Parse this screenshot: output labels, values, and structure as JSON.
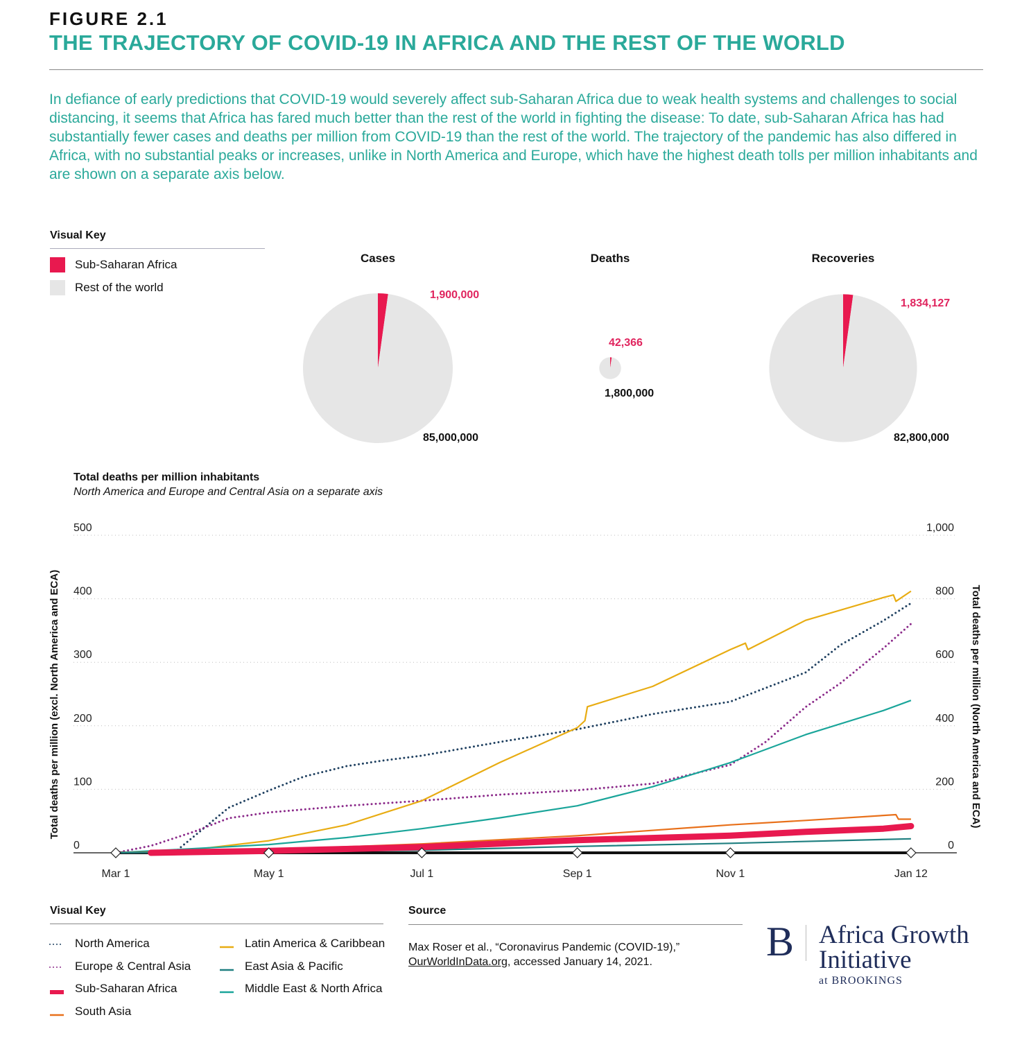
{
  "header": {
    "figure_label": "FIGURE 2.1",
    "title": "THE TRAJECTORY OF COVID-19 IN AFRICA AND THE REST OF THE WORLD",
    "intro": "In defiance of early predictions that COVID-19 would severely affect sub-Saharan Africa due to weak health systems and challenges to social distancing, it seems that Africa has fared much better than the rest of the world in fighting the disease: To date, sub-Saharan Africa has had substantially fewer cases and deaths per million from COVID-19 than the rest of the world. The trajectory of the pandemic has also differed in Africa, with no substantial peaks or increases, unlike in North America and Europe, which have the highest death tolls per million inhabitants and are shown on a separate axis below."
  },
  "pie_key": {
    "title": "Visual Key",
    "items": [
      {
        "label": "Sub-Saharan Africa",
        "color": "#e8194f"
      },
      {
        "label": "Rest of the world",
        "color": "#e6e6e6"
      }
    ]
  },
  "chart_data": [
    {
      "type": "pie",
      "title": "Cases",
      "slices": [
        {
          "label": "Sub-Saharan Africa",
          "value": 1900000,
          "display": "1,900,000",
          "color": "#e8194f"
        },
        {
          "label": "Rest of the world",
          "value": 85000000,
          "display": "85,000,000",
          "color": "#e6e6e6"
        }
      ]
    },
    {
      "type": "pie",
      "title": "Deaths",
      "slices": [
        {
          "label": "Sub-Saharan Africa",
          "value": 42366,
          "display": "42,366",
          "color": "#e8194f"
        },
        {
          "label": "Rest of the world",
          "value": 1800000,
          "display": "1,800,000",
          "color": "#e6e6e6"
        }
      ]
    },
    {
      "type": "pie",
      "title": "Recoveries",
      "slices": [
        {
          "label": "Sub-Saharan Africa",
          "value": 1834127,
          "display": "1,834,127",
          "color": "#e8194f"
        },
        {
          "label": "Rest of the world",
          "value": 82800000,
          "display": "82,800,000",
          "color": "#e6e6e6"
        }
      ]
    },
    {
      "type": "line",
      "title": "Total deaths per million inhabitants",
      "subtitle": "North America and Europe and Central Asia on a separate axis",
      "ylabel": "Total deaths per million (excl. North America and ECA)",
      "y2label": "Total deaths per million (North America and ECA)",
      "ylim": [
        0,
        500
      ],
      "y2lim": [
        0,
        1000
      ],
      "yticks": [
        "0",
        "100",
        "200",
        "300",
        "400",
        "500"
      ],
      "y2ticks": [
        "0",
        "200",
        "400",
        "600",
        "800",
        "1,000"
      ],
      "xticks": [
        {
          "label": "Mar 1",
          "date": "2020-03-01"
        },
        {
          "label": "May 1",
          "date": "2020-05-01"
        },
        {
          "label": "Jul 1",
          "date": "2020-07-01"
        },
        {
          "label": "Sep 1",
          "date": "2020-09-01"
        },
        {
          "label": "Nov 1",
          "date": "2020-11-01"
        },
        {
          "label": "Jan 12",
          "date": "2021-01-12"
        }
      ],
      "grid": true,
      "series": [
        {
          "name": "North America",
          "axis": "right",
          "style": "dotted",
          "color": "#1f4060",
          "points": [
            [
              "2020-03-01",
              0
            ],
            [
              "2020-03-25",
              5
            ],
            [
              "2020-04-15",
              142
            ],
            [
              "2020-05-01",
              196
            ],
            [
              "2020-05-15",
              240
            ],
            [
              "2020-06-01",
              273
            ],
            [
              "2020-06-15",
              290
            ],
            [
              "2020-07-01",
              306
            ],
            [
              "2020-08-01",
              349
            ],
            [
              "2020-09-01",
              389
            ],
            [
              "2020-10-01",
              437
            ],
            [
              "2020-11-01",
              476
            ],
            [
              "2020-12-01",
              568
            ],
            [
              "2020-12-15",
              655
            ],
            [
              "2021-01-01",
              731
            ],
            [
              "2021-01-12",
              786
            ]
          ]
        },
        {
          "name": "Europe & Central Asia",
          "axis": "right",
          "style": "dotted",
          "color": "#8b2a8a",
          "points": [
            [
              "2020-03-01",
              0
            ],
            [
              "2020-03-15",
              22
            ],
            [
              "2020-04-01",
              66
            ],
            [
              "2020-04-15",
              109
            ],
            [
              "2020-05-01",
              127
            ],
            [
              "2020-06-01",
              148
            ],
            [
              "2020-07-01",
              164
            ],
            [
              "2020-08-01",
              183
            ],
            [
              "2020-09-01",
              197
            ],
            [
              "2020-10-01",
              218
            ],
            [
              "2020-11-01",
              277
            ],
            [
              "2020-11-15",
              349
            ],
            [
              "2020-12-01",
              459
            ],
            [
              "2020-12-15",
              535
            ],
            [
              "2021-01-01",
              644
            ],
            [
              "2021-01-12",
              721
            ]
          ]
        },
        {
          "name": "Latin America & Caribbean",
          "axis": "left",
          "style": "solid",
          "color": "#e8ac12",
          "points": [
            [
              "2020-03-01",
              0
            ],
            [
              "2020-04-01",
              5
            ],
            [
              "2020-05-01",
              19
            ],
            [
              "2020-06-01",
              44
            ],
            [
              "2020-07-01",
              82
            ],
            [
              "2020-08-01",
              142
            ],
            [
              "2020-09-01",
              197
            ],
            [
              "2020-09-04",
              208
            ],
            [
              "2020-09-05",
              230
            ],
            [
              "2020-10-01",
              262
            ],
            [
              "2020-11-01",
              320
            ],
            [
              "2020-11-07",
              330
            ],
            [
              "2020-11-08",
              320
            ],
            [
              "2020-12-01",
              366
            ],
            [
              "2021-01-01",
              402
            ],
            [
              "2021-01-05",
              406
            ],
            [
              "2021-01-06",
              396
            ],
            [
              "2021-01-12",
              412
            ]
          ]
        },
        {
          "name": "Middle East & North Africa",
          "axis": "left",
          "style": "solid",
          "color": "#1aa59a",
          "points": [
            [
              "2020-03-01",
              0
            ],
            [
              "2020-05-01",
              13
            ],
            [
              "2020-06-01",
              24
            ],
            [
              "2020-07-01",
              38
            ],
            [
              "2020-08-01",
              55
            ],
            [
              "2020-09-01",
              74
            ],
            [
              "2020-10-01",
              104
            ],
            [
              "2020-11-01",
              142
            ],
            [
              "2020-12-01",
              186
            ],
            [
              "2021-01-01",
              224
            ],
            [
              "2021-01-12",
              240
            ]
          ]
        },
        {
          "name": "South Asia",
          "axis": "left",
          "style": "solid",
          "color": "#e8701a",
          "points": [
            [
              "2020-03-01",
              0
            ],
            [
              "2020-05-01",
              5
            ],
            [
              "2020-07-01",
              14
            ],
            [
              "2020-09-01",
              27
            ],
            [
              "2020-11-01",
              44
            ],
            [
              "2020-12-01",
              51
            ],
            [
              "2021-01-06",
              60
            ],
            [
              "2021-01-07",
              53
            ],
            [
              "2021-01-12",
              53
            ]
          ]
        },
        {
          "name": "East Asia & Pacific",
          "axis": "left",
          "style": "solid",
          "color": "#1f7f80",
          "points": [
            [
              "2020-03-01",
              0
            ],
            [
              "2020-07-01",
              4
            ],
            [
              "2020-09-01",
              10
            ],
            [
              "2020-11-01",
              15
            ],
            [
              "2021-01-12",
              22
            ]
          ]
        },
        {
          "name": "Sub-Saharan Africa",
          "axis": "left",
          "style": "thick",
          "color": "#e8194f",
          "points": [
            [
              "2020-03-15",
              0
            ],
            [
              "2020-05-01",
              3
            ],
            [
              "2020-07-01",
              9
            ],
            [
              "2020-09-01",
              20
            ],
            [
              "2020-11-01",
              27
            ],
            [
              "2020-12-01",
              33
            ],
            [
              "2021-01-01",
              38
            ],
            [
              "2021-01-12",
              42
            ]
          ]
        }
      ]
    }
  ],
  "legend": {
    "title": "Visual Key",
    "items": [
      {
        "label": "North America",
        "color": "#1f4060",
        "style": "dotted"
      },
      {
        "label": "Europe & Central Asia",
        "color": "#8b2a8a",
        "style": "dotted"
      },
      {
        "label": "Sub-Saharan Africa",
        "color": "#e8194f",
        "style": "thick"
      },
      {
        "label": "South Asia",
        "color": "#e8701a",
        "style": "solid"
      },
      {
        "label": "Latin America & Caribbean",
        "color": "#e8ac12",
        "style": "solid"
      },
      {
        "label": "East Asia & Pacific",
        "color": "#1f7f80",
        "style": "solid"
      },
      {
        "label": "Middle East & North Africa",
        "color": "#1aa59a",
        "style": "solid"
      }
    ]
  },
  "source": {
    "title": "Source",
    "text_before": "Max Roser et al., “Coronavirus Pandemic (COVID-19),”",
    "link": "OurWorldInData.org",
    "text_after": ", accessed January 14, 2021."
  },
  "logo": {
    "mark": "B",
    "line1": "Africa Growth",
    "line2": "Initiative",
    "line3": "at BROOKINGS"
  }
}
